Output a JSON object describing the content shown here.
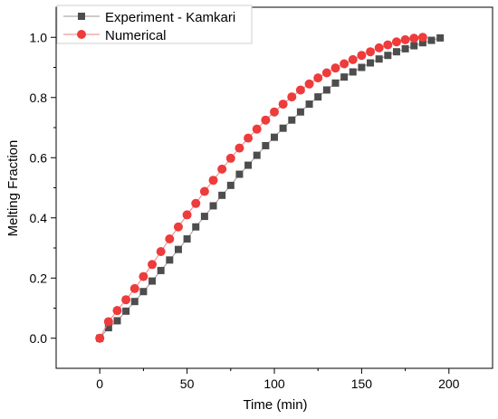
{
  "chart_data": {
    "type": "scatter",
    "xlabel": "Time (min)",
    "ylabel": "Melting Fraction",
    "xlim": [
      -25,
      225
    ],
    "ylim": [
      -0.1,
      1.1
    ],
    "x_ticks": [
      0,
      50,
      100,
      150,
      200
    ],
    "y_ticks": [
      0.0,
      0.2,
      0.4,
      0.6,
      0.8,
      1.0
    ],
    "x_tick_labels": [
      "0",
      "50",
      "100",
      "150",
      "200"
    ],
    "y_tick_labels": [
      "0.0",
      "0.2",
      "0.4",
      "0.6",
      "0.8",
      "1.0"
    ],
    "grid": false,
    "legend_position": "top-left",
    "series": [
      {
        "name": "Experiment - Kamkari",
        "marker": "square",
        "color": "#4d4d4d",
        "x": [
          0,
          5,
          10,
          15,
          20,
          25,
          30,
          35,
          40,
          45,
          50,
          55,
          60,
          65,
          70,
          75,
          80,
          85,
          90,
          95,
          100,
          105,
          110,
          115,
          120,
          125,
          130,
          135,
          140,
          145,
          150,
          155,
          160,
          165,
          170,
          175,
          180,
          185,
          190,
          195
        ],
        "y": [
          0.0,
          0.035,
          0.058,
          0.09,
          0.122,
          0.155,
          0.19,
          0.225,
          0.26,
          0.295,
          0.33,
          0.37,
          0.405,
          0.44,
          0.475,
          0.508,
          0.545,
          0.575,
          0.608,
          0.64,
          0.668,
          0.698,
          0.725,
          0.752,
          0.778,
          0.802,
          0.825,
          0.848,
          0.868,
          0.885,
          0.9,
          0.915,
          0.928,
          0.94,
          0.952,
          0.962,
          0.972,
          0.982,
          0.99,
          0.998
        ]
      },
      {
        "name": "Numerical",
        "marker": "circle",
        "color": "#ee3b3b",
        "x": [
          0,
          5,
          10,
          15,
          20,
          25,
          30,
          35,
          40,
          45,
          50,
          55,
          60,
          65,
          70,
          75,
          80,
          85,
          90,
          95,
          100,
          105,
          110,
          115,
          120,
          125,
          130,
          135,
          140,
          145,
          150,
          155,
          160,
          165,
          170,
          175,
          180,
          185
        ],
        "y": [
          0.0,
          0.055,
          0.092,
          0.128,
          0.165,
          0.205,
          0.245,
          0.288,
          0.33,
          0.37,
          0.41,
          0.448,
          0.488,
          0.525,
          0.562,
          0.598,
          0.632,
          0.665,
          0.695,
          0.725,
          0.752,
          0.778,
          0.802,
          0.825,
          0.845,
          0.865,
          0.882,
          0.898,
          0.912,
          0.926,
          0.94,
          0.952,
          0.965,
          0.975,
          0.985,
          0.992,
          0.997,
          1.0
        ]
      }
    ]
  }
}
